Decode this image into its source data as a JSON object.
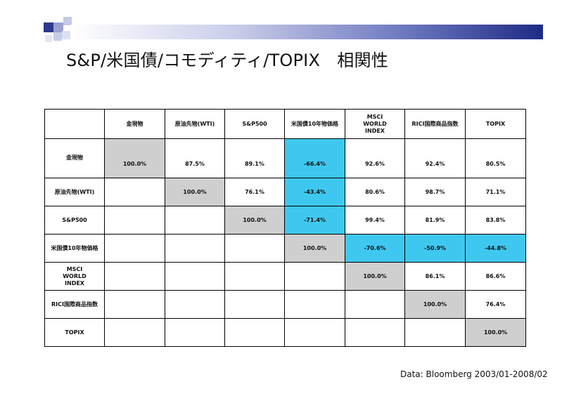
{
  "title": "S&P/米国債/コモディティ/TOPIX　相関性",
  "table": {
    "columns": [
      "",
      "金現物",
      "原油先物(WTI)",
      "S&P500",
      "米国債10年物価格",
      "MSCI WORLD INDEX",
      "RICI国際商品指数",
      "TOPIX"
    ],
    "rows": [
      {
        "label": "金現物",
        "cells": [
          "100.0%",
          "87.5%",
          "89.1%",
          "-66.4%",
          "92.6%",
          "92.4%",
          "80.5%"
        ]
      },
      {
        "label": "原油先物(WTI)",
        "cells": [
          "",
          "100.0%",
          "76.1%",
          "-43.4%",
          "80.6%",
          "98.7%",
          "71.1%"
        ]
      },
      {
        "label": "S&P500",
        "cells": [
          "",
          "",
          "100.0%",
          "-71.4%",
          "99.4%",
          "81.9%",
          "83.8%"
        ]
      },
      {
        "label": "米国債10年物価格",
        "cells": [
          "",
          "",
          "",
          "100.0%",
          "-70.6%",
          "-50.9%",
          "-44.8%"
        ]
      },
      {
        "label": "MSCI WORLD INDEX",
        "cells": [
          "",
          "",
          "",
          "",
          "100.0%",
          "86.1%",
          "86.6%"
        ]
      },
      {
        "label": "RICI国際商品指数",
        "cells": [
          "",
          "",
          "",
          "",
          "",
          "100.0%",
          "76.4%"
        ]
      },
      {
        "label": "TOPIX",
        "cells": [
          "",
          "",
          "",
          "",
          "",
          "",
          "100.0%"
        ]
      }
    ]
  },
  "colors": {
    "diagonal": "#cfcfcf",
    "negative_highlight": "#3fc8ef",
    "title_bar_dark": "#1f2a86"
  },
  "source": "Data: Bloomberg 2003/01-2008/02"
}
